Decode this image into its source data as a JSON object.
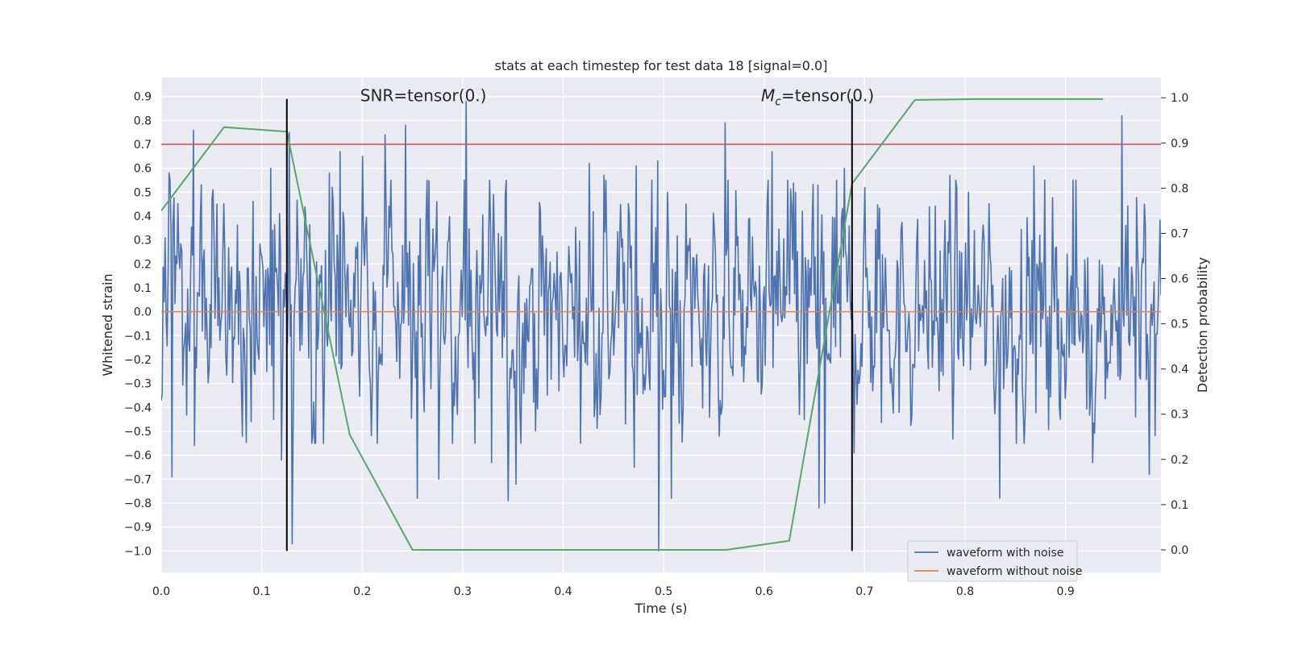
{
  "chart_data": {
    "type": "line",
    "title": "stats at each timestep for test data 18 [signal=0.0]",
    "xlabel": "Time (s)",
    "ylabel": "Whitened strain",
    "y2label": "Detection probability",
    "xlim": [
      0.0,
      0.995
    ],
    "ylim": [
      -1.09,
      0.98
    ],
    "y2lim": [
      -0.05,
      1.045
    ],
    "xticks": [
      "0.0",
      "0.1",
      "0.2",
      "0.3",
      "0.4",
      "0.5",
      "0.6",
      "0.7",
      "0.8",
      "0.9"
    ],
    "yticks": [
      "0.9",
      "0.8",
      "0.7",
      "0.6",
      "0.5",
      "0.4",
      "0.3",
      "0.2",
      "0.1",
      "0.0",
      "−0.1",
      "−0.2",
      "−0.3",
      "−0.4",
      "−0.5",
      "−0.6",
      "−0.7",
      "−0.8",
      "−0.9",
      "−1.0"
    ],
    "y2ticks": [
      "1.0",
      "0.9",
      "0.8",
      "0.7",
      "0.6",
      "0.5",
      "0.4",
      "0.3",
      "0.2",
      "0.1",
      "0.0"
    ],
    "grid": true,
    "legend_position": "lower-right",
    "colors": {
      "noise": "#4c72b0",
      "clean": "#dd8452",
      "prob": "#55a868",
      "threshold": "#c44e52",
      "marker": "#000000",
      "background": "#eaeaf2",
      "grid": "#ffffff"
    },
    "series": [
      {
        "name": "waveform with noise",
        "samples": 1024,
        "noise_sigma": 0.28,
        "peaks": [
          {
            "x": 0.008,
            "y": 0.58
          },
          {
            "x": 0.011,
            "y": -0.69
          },
          {
            "x": 0.032,
            "y": 0.76
          },
          {
            "x": 0.033,
            "y": -0.56
          },
          {
            "x": 0.055,
            "y": 0.45
          },
          {
            "x": 0.109,
            "y": 0.6
          },
          {
            "x": 0.112,
            "y": -0.45
          },
          {
            "x": 0.12,
            "y": -0.62
          },
          {
            "x": 0.127,
            "y": 0.75
          },
          {
            "x": 0.13,
            "y": -0.97
          },
          {
            "x": 0.167,
            "y": 0.58
          },
          {
            "x": 0.178,
            "y": 0.67
          },
          {
            "x": 0.2,
            "y": 0.65
          },
          {
            "x": 0.223,
            "y": 0.74
          },
          {
            "x": 0.243,
            "y": 0.78
          },
          {
            "x": 0.255,
            "y": -0.78
          },
          {
            "x": 0.276,
            "y": -0.7
          },
          {
            "x": 0.303,
            "y": 0.88
          },
          {
            "x": 0.329,
            "y": -0.63
          },
          {
            "x": 0.345,
            "y": -0.79
          },
          {
            "x": 0.353,
            "y": -0.72
          },
          {
            "x": 0.426,
            "y": 0.62
          },
          {
            "x": 0.441,
            "y": 0.57
          },
          {
            "x": 0.473,
            "y": 0.61
          },
          {
            "x": 0.471,
            "y": -0.65
          },
          {
            "x": 0.494,
            "y": 0.63
          },
          {
            "x": 0.495,
            "y": -1.0
          },
          {
            "x": 0.508,
            "y": -0.78
          },
          {
            "x": 0.561,
            "y": 0.79
          },
          {
            "x": 0.608,
            "y": 0.67
          },
          {
            "x": 0.631,
            "y": 0.5
          },
          {
            "x": 0.64,
            "y": -0.45
          },
          {
            "x": 0.654,
            "y": 0.53
          },
          {
            "x": 0.655,
            "y": -0.82
          },
          {
            "x": 0.66,
            "y": -0.8
          },
          {
            "x": 0.68,
            "y": 0.6
          },
          {
            "x": 0.69,
            "y": -0.59
          },
          {
            "x": 0.785,
            "y": 0.57
          },
          {
            "x": 0.803,
            "y": 0.5
          },
          {
            "x": 0.835,
            "y": -0.78
          },
          {
            "x": 0.869,
            "y": 0.61
          },
          {
            "x": 0.927,
            "y": -0.63
          },
          {
            "x": 0.956,
            "y": 0.82
          },
          {
            "x": 0.97,
            "y": -0.44
          },
          {
            "x": 0.978,
            "y": 0.45
          },
          {
            "x": 0.983,
            "y": -0.68
          }
        ]
      },
      {
        "name": "waveform without noise",
        "x": [
          0.0,
          0.995
        ],
        "y": [
          0.0,
          0.0
        ]
      },
      {
        "axis": "right",
        "x": [
          0.0,
          0.0625,
          0.125,
          0.1875,
          0.25,
          0.3125,
          0.375,
          0.4375,
          0.5,
          0.5625,
          0.625,
          0.6875,
          0.75,
          0.8125,
          0.875,
          0.9375
        ],
        "y": [
          0.75,
          0.935,
          0.925,
          0.255,
          0.0,
          0.0,
          0.0,
          0.0,
          0.0,
          0.0,
          0.02,
          0.81,
          0.995,
          0.997,
          0.997,
          0.997
        ]
      }
    ],
    "threshold_y": 0.7,
    "markers": [
      {
        "x": 0.125,
        "y_from": -1.0,
        "y_to": 0.89
      },
      {
        "x": 0.6875,
        "y_from": -1.0,
        "y_to": 0.89
      }
    ],
    "annotations": [
      {
        "text": "SNR=tensor(0.)",
        "x": 0.198,
        "y": 0.88
      },
      {
        "text_main": "M",
        "text_sub": "c",
        "text_rest": "=tensor(0.)",
        "x": 0.597,
        "y": 0.88
      }
    ]
  }
}
